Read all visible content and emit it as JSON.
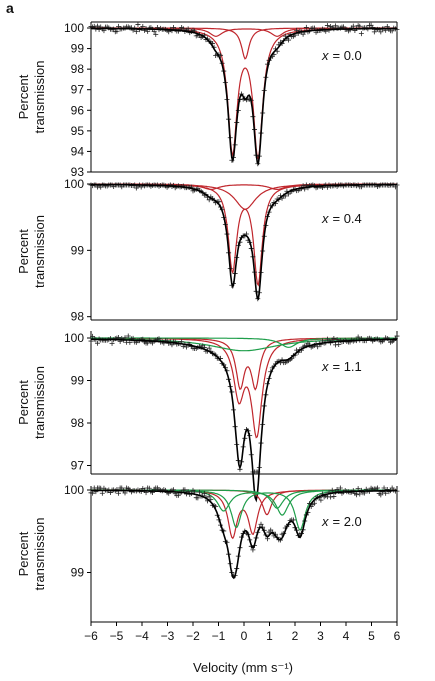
{
  "figure": {
    "panel_letter": "a",
    "xlabel": "Velocity (mm s⁻¹)",
    "ylabel_line1": "Percent",
    "ylabel_line2": "transmission"
  },
  "colors": {
    "data_markers": "#222222",
    "total_fit": "#000000",
    "doublet_red": "#c0272d",
    "doublet_green": "#1e9e4a",
    "axis": "#000000"
  },
  "chart_data": [
    {
      "type": "scatter",
      "annotation": "x = 0.0",
      "annotation_var": "x",
      "annotation_val": "= 0.0",
      "xlim": [
        -6,
        6
      ],
      "ylim": [
        93,
        100.3
      ],
      "yticks": [
        100,
        99,
        98,
        97,
        96,
        95,
        94,
        93
      ],
      "ytick_labels": [
        "100",
        "99",
        "98",
        "97",
        "96",
        "95",
        "94",
        "93"
      ],
      "series": [
        {
          "color": "red",
          "components": [
            [
              -0.45,
              0.22,
              5.9
            ],
            [
              0.55,
              0.22,
              6.1
            ]
          ]
        },
        {
          "color": "red",
          "components": [
            [
              -1.1,
              0.3,
              0.4
            ],
            [
              1.3,
              0.3,
              0.4
            ]
          ]
        },
        {
          "color": "red",
          "components": [
            [
              0.05,
              0.18,
              1.5
            ]
          ]
        }
      ],
      "noise": 0.18
    },
    {
      "type": "scatter",
      "annotation": "x = 0.4",
      "annotation_var": "x",
      "annotation_val": "= 0.4",
      "xlim": [
        -6,
        6
      ],
      "ylim": [
        97.95,
        100.05
      ],
      "yticks": [
        100,
        99,
        98
      ],
      "ytick_labels": [
        "100",
        "99",
        "98"
      ],
      "series": [
        {
          "color": "red",
          "components": [
            [
              -0.45,
              0.2,
              1.28
            ],
            [
              0.55,
              0.2,
              1.48
            ]
          ]
        },
        {
          "color": "red",
          "components": [
            [
              -1.3,
              0.4,
              0.08
            ],
            [
              1.3,
              0.4,
              0.08
            ]
          ]
        },
        {
          "color": "red",
          "components": [
            [
              0.05,
              0.5,
              0.38
            ]
          ]
        }
      ],
      "noise": 0.035
    },
    {
      "type": "scatter",
      "annotation": "x = 1.1",
      "annotation_var": "x",
      "annotation_val": "= 1.1",
      "xlim": [
        -6,
        6
      ],
      "ylim": [
        96.8,
        100.25
      ],
      "yticks": [
        100,
        99,
        98,
        97
      ],
      "ytick_labels": [
        "100",
        "99",
        "98",
        "97"
      ],
      "series": [
        {
          "color": "red",
          "components": [
            [
              -0.15,
              0.2,
              1.1
            ],
            [
              0.45,
              0.2,
              1.1
            ]
          ]
        },
        {
          "color": "red",
          "components": [
            [
              -0.2,
              0.25,
              1.3
            ],
            [
              0.5,
              0.25,
              2.2
            ]
          ]
        },
        {
          "color": "green",
          "components": [
            [
              0.0,
              1.6,
              0.3
            ]
          ]
        },
        {
          "color": "green",
          "components": [
            [
              1.75,
              0.4,
              0.22
            ]
          ]
        }
      ],
      "noise": 0.07
    },
    {
      "type": "scatter",
      "annotation": "x = 2.0",
      "annotation_var": "x",
      "annotation_val": "= 2.0",
      "xlim": [
        -6,
        6
      ],
      "ylim": [
        98.4,
        100.12
      ],
      "yticks": [
        100,
        99
      ],
      "ytick_labels": [
        "100",
        "99"
      ],
      "xticks": [
        -6,
        -5,
        -4,
        -3,
        -2,
        -1,
        0,
        1,
        2,
        3,
        4,
        5,
        6
      ],
      "xtick_labels": [
        "−6",
        "−5",
        "−4",
        "−3",
        "−2",
        "−1",
        "0",
        "1",
        "2",
        "3",
        "4",
        "5",
        "6"
      ],
      "series": [
        {
          "color": "red",
          "components": [
            [
              -0.45,
              0.22,
              0.55
            ],
            [
              0.35,
              0.22,
              0.5
            ]
          ]
        },
        {
          "color": "red",
          "components": [
            [
              0.9,
              0.22,
              0.3
            ]
          ]
        },
        {
          "color": "green",
          "components": [
            [
              -0.3,
              0.25,
              0.45
            ],
            [
              2.2,
              0.25,
              0.48
            ]
          ]
        },
        {
          "color": "green",
          "components": [
            [
              -0.8,
              0.3,
              0.25
            ],
            [
              1.5,
              0.3,
              0.3
            ]
          ]
        },
        {
          "color": "green",
          "components": [
            [
              1.3,
              0.3,
              0.22
            ]
          ]
        }
      ],
      "noise": 0.05
    }
  ]
}
